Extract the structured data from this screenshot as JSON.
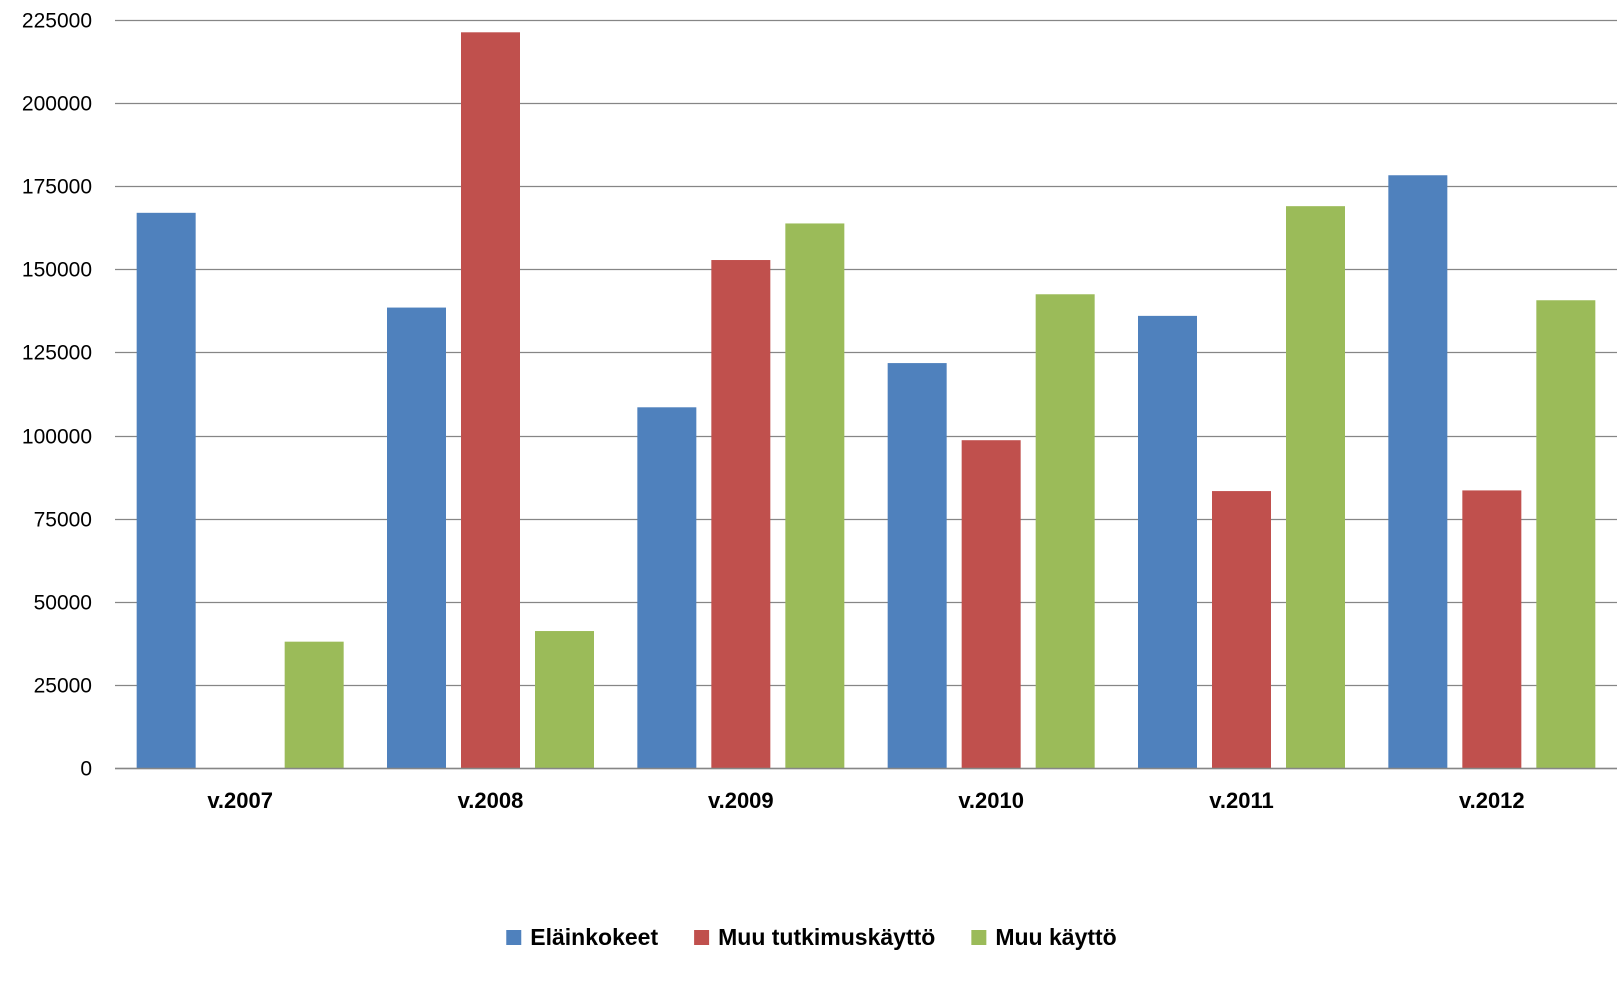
{
  "chart_data": {
    "type": "bar",
    "title": "",
    "xlabel": "",
    "ylabel": "",
    "categories": [
      "v.2007",
      "v.2008",
      "v.2009",
      "v.2010",
      "v.2011",
      "v.2012"
    ],
    "series": [
      {
        "name": "Eläinkokeet",
        "color": "#4f81bd",
        "values": [
          167000,
          138500,
          108500,
          121800,
          136000,
          178300
        ]
      },
      {
        "name": "Muu tutkimuskäyttö",
        "color": "#c0504d",
        "values": [
          0,
          221300,
          152800,
          98600,
          83300,
          83500
        ]
      },
      {
        "name": "Muu käyttö",
        "color": "#9bbb59",
        "values": [
          38000,
          41200,
          163800,
          142500,
          169000,
          140700
        ]
      }
    ],
    "ylim": [
      0,
      225000
    ],
    "yticks": [
      0,
      25000,
      50000,
      75000,
      100000,
      125000,
      150000,
      175000,
      200000,
      225000
    ],
    "grid": true,
    "legend": "bottom"
  }
}
